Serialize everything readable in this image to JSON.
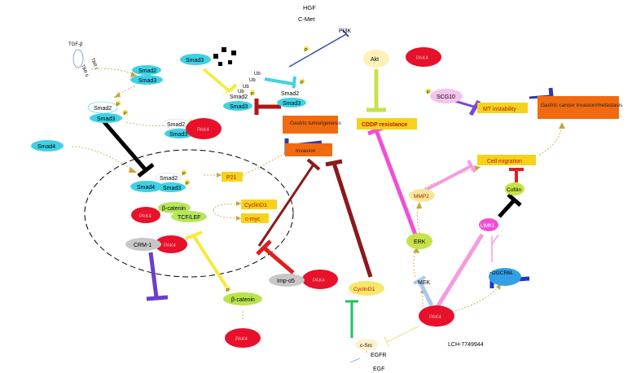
{
  "labels": {
    "hgf": "HGF",
    "cmet": "C-Met",
    "pi3k": "PI3K",
    "tgfb": "TGF-β",
    "tbr1": "TBR I",
    "tbr2": "TBR II",
    "smad2": "Smad2",
    "smad3": "Smad3",
    "smad4": "Smad4",
    "p": "P",
    "ub": "Ub",
    "pak4": "PAK4",
    "akt": "Akt",
    "scg10": "SCG10",
    "mt_instability": "MT instability",
    "gastric_cancer": "Gastric cancer invasion/metastasis",
    "gastric_tumorigenesis": "Gastric tumorigenesis",
    "invasion": "Invasion",
    "cddp": "CDDP resistance",
    "p21": "P21",
    "cyclind1": "CyclinD1",
    "cmyc": "c-myc",
    "bcatenin": "β-catenin",
    "tcflef": "TCF/LEF",
    "crm1": "CRM-1",
    "impa5": "Imp-α5",
    "mmp2": "MMP2",
    "cell_migration": "Cell migration",
    "cofilin": "Cofilin",
    "limk1": "LIMK1",
    "erk": "ERK",
    "mek": "MEK",
    "dgcr6l": "DGCR6L",
    "csrc": "c-Src",
    "egfr": "EGFR",
    "egf": "EGF",
    "inhibitor": "LCH-7749944"
  },
  "colors": {
    "cyan": "#3fd1e6",
    "pak_red": "#e8102a",
    "yellow_box": "#f7d21a",
    "orange_box": "#f26a10",
    "grey": "#c7c7c7",
    "green": "#b6e65a",
    "pink": "#f6b6e2",
    "darkred": "#9b1d22",
    "magenta": "#ef4fd8",
    "lightgreen": "#b9e34b",
    "black": "#000000",
    "navy": "#2f3ca6",
    "purple": "#7b47d6",
    "lightblue": "#a9c9ef",
    "teal": "#22c25c"
  }
}
